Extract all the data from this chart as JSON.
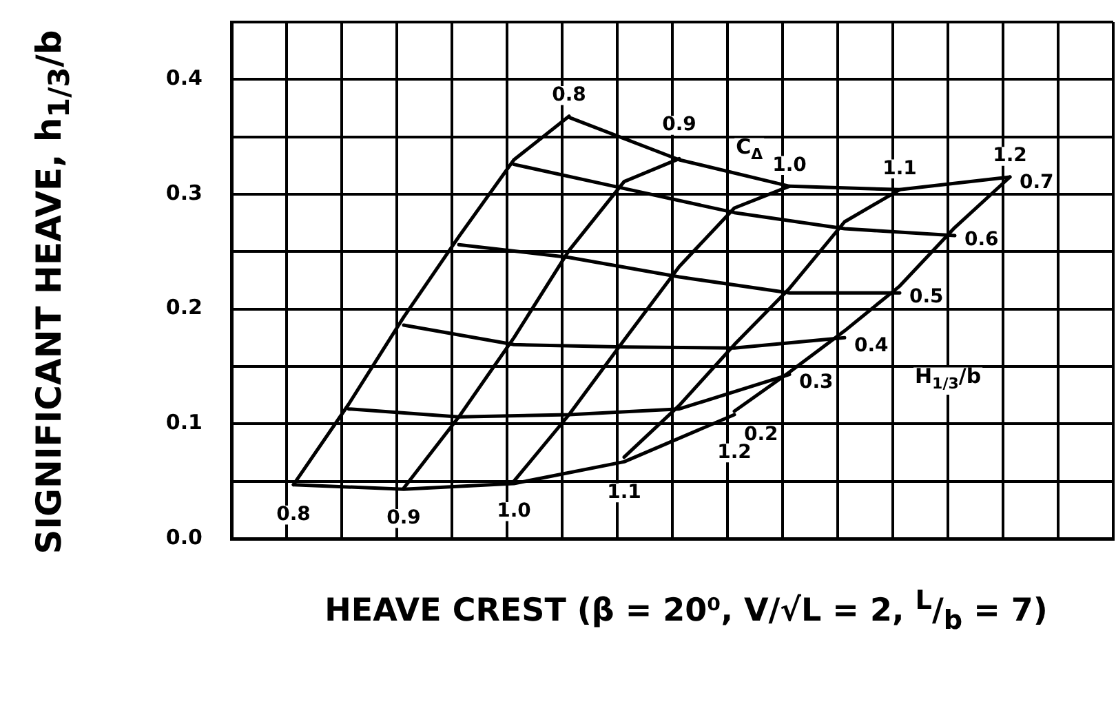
{
  "chart_data": {
    "type": "line",
    "xlabel": "HEAVE CREST (β = 20⁰, V/√L = 2, $^{L}$/$_{b}$ = 7)",
    "ylabel": "SIGNIFICANT HEAVE, h$_{1/3}$/b",
    "annotations": [
      "C$_{Δ}$",
      "H$_{1/3}$/b"
    ],
    "categories": [
      null,
      null,
      null,
      null,
      null,
      null,
      null,
      null,
      null,
      null,
      null,
      null,
      null,
      null,
      null,
      null,
      null,
      null,
      null,
      null,
      null,
      null,
      null,
      null,
      null,
      null,
      null,
      null,
      null,
      null,
      null,
      null,
      null,
      null,
      null,
      null,
      null,
      null,
      null,
      null,
      null,
      null,
      null,
      null,
      null,
      null,
      null,
      null,
      null,
      null,
      null,
      null,
      null,
      null,
      null,
      null,
      null,
      null,
      null,
      null,
      null,
      null,
      null,
      null
    ],
    "series": [
      {
        "name": "0.8",
        "color": "#000000",
        "values": [
          null,
          null,
          null,
          null,
          0.047,
          null,
          null,
          null,
          0.117,
          null,
          null,
          null,
          0.193,
          null,
          null,
          null,
          0.263,
          null,
          null,
          null,
          0.33,
          null,
          null,
          null,
          0.368,
          null,
          null,
          null,
          null,
          null,
          null,
          null,
          null,
          null,
          null,
          null,
          null,
          null,
          null,
          null,
          null,
          null,
          null,
          null,
          null,
          null,
          null,
          null,
          null,
          null,
          null,
          null,
          null,
          null,
          null,
          null,
          null,
          null,
          null,
          null,
          null,
          null,
          null,
          null
        ]
      },
      {
        "name": "0.9",
        "color": "#000000",
        "values": [
          null,
          null,
          null,
          null,
          null,
          null,
          null,
          null,
          null,
          null,
          null,
          null,
          0.044,
          null,
          null,
          null,
          0.106,
          null,
          null,
          null,
          0.175,
          null,
          null,
          null,
          0.251,
          null,
          null,
          null,
          0.311,
          null,
          null,
          null,
          0.331,
          null,
          null,
          null,
          null,
          null,
          null,
          null,
          null,
          null,
          null,
          null,
          null,
          null,
          null,
          null,
          null,
          null,
          null,
          null,
          null,
          null,
          null,
          null,
          null,
          null,
          null,
          null,
          null,
          null,
          null,
          null
        ]
      },
      {
        "name": "1.0",
        "color": "#000000",
        "values": [
          null,
          null,
          null,
          null,
          null,
          null,
          null,
          null,
          null,
          null,
          null,
          null,
          null,
          null,
          null,
          null,
          null,
          null,
          null,
          null,
          0.05,
          null,
          null,
          null,
          0.108,
          null,
          null,
          null,
          0.173,
          null,
          null,
          null,
          0.237,
          null,
          null,
          null,
          0.288,
          null,
          null,
          null,
          0.307,
          null,
          null,
          null,
          null,
          null,
          null,
          null,
          null,
          null,
          null,
          null,
          null,
          null,
          null,
          null,
          null,
          null,
          null,
          null,
          null,
          null,
          null,
          null
        ]
      },
      {
        "name": "1.1",
        "color": "#000000",
        "values": [
          null,
          null,
          null,
          null,
          null,
          null,
          null,
          null,
          null,
          null,
          null,
          null,
          null,
          null,
          null,
          null,
          null,
          null,
          null,
          null,
          null,
          null,
          null,
          null,
          null,
          null,
          null,
          null,
          0.071,
          null,
          null,
          null,
          0.116,
          null,
          null,
          null,
          0.169,
          null,
          null,
          null,
          0.218,
          null,
          null,
          null,
          0.276,
          null,
          null,
          null,
          0.304,
          null,
          null,
          null,
          null,
          null,
          null,
          null,
          null,
          null,
          null,
          null,
          null,
          null,
          null,
          null
        ]
      },
      {
        "name": "1.2",
        "color": "#000000",
        "values": [
          null,
          null,
          null,
          null,
          null,
          null,
          null,
          null,
          null,
          null,
          null,
          null,
          null,
          null,
          null,
          null,
          null,
          null,
          null,
          null,
          null,
          null,
          null,
          null,
          null,
          null,
          null,
          null,
          null,
          null,
          null,
          null,
          null,
          null,
          null,
          null,
          0.111,
          null,
          null,
          null,
          0.145,
          null,
          null,
          null,
          0.181,
          null,
          null,
          null,
          0.22,
          null,
          null,
          null,
          0.271,
          null,
          null,
          null,
          0.315,
          null,
          null,
          null,
          null,
          null,
          null,
          null
        ]
      },
      {
        "name": "0.2",
        "color": "#000000",
        "values": [
          null,
          null,
          null,
          null,
          0.047,
          null,
          null,
          null,
          null,
          null,
          null,
          null,
          0.043,
          null,
          null,
          null,
          null,
          null,
          null,
          null,
          0.048,
          null,
          null,
          null,
          null,
          null,
          null,
          null,
          0.067,
          null,
          null,
          null,
          null,
          null,
          null,
          null,
          0.108,
          null,
          null,
          null,
          null,
          null,
          null,
          null,
          null,
          null,
          null,
          null,
          null,
          null,
          null,
          null,
          null,
          null,
          null,
          null,
          null,
          null,
          null,
          null,
          null,
          null,
          null,
          null
        ]
      },
      {
        "name": "0.3",
        "color": "#000000",
        "values": [
          null,
          null,
          null,
          null,
          null,
          null,
          null,
          null,
          0.113,
          null,
          null,
          null,
          null,
          null,
          null,
          null,
          0.106,
          null,
          null,
          null,
          null,
          null,
          null,
          null,
          0.108,
          null,
          null,
          null,
          null,
          null,
          null,
          null,
          0.113,
          null,
          null,
          null,
          null,
          null,
          null,
          null,
          0.143,
          null,
          null,
          null,
          null,
          null,
          null,
          null,
          null,
          null,
          null,
          null,
          null,
          null,
          null,
          null,
          null,
          null,
          null,
          null,
          null,
          null,
          null,
          null
        ]
      },
      {
        "name": "0.4",
        "color": "#000000",
        "values": [
          null,
          null,
          null,
          null,
          null,
          null,
          null,
          null,
          null,
          null,
          null,
          null,
          0.186,
          null,
          null,
          null,
          null,
          null,
          null,
          null,
          0.169,
          null,
          null,
          null,
          null,
          null,
          null,
          null,
          0.167,
          null,
          null,
          null,
          null,
          null,
          null,
          null,
          0.166,
          null,
          null,
          null,
          null,
          null,
          null,
          null,
          0.175,
          null,
          null,
          null,
          null,
          null,
          null,
          null,
          null,
          null,
          null,
          null,
          null,
          null,
          null,
          null,
          null,
          null,
          null,
          null
        ]
      },
      {
        "name": "0.5",
        "color": "#000000",
        "values": [
          null,
          null,
          null,
          null,
          null,
          null,
          null,
          null,
          null,
          null,
          null,
          null,
          null,
          null,
          null,
          null,
          0.256,
          null,
          null,
          null,
          null,
          null,
          null,
          null,
          0.245,
          null,
          null,
          null,
          null,
          null,
          null,
          null,
          0.228,
          null,
          null,
          null,
          null,
          null,
          null,
          null,
          0.214,
          null,
          null,
          null,
          null,
          null,
          null,
          null,
          0.214,
          null,
          null,
          null,
          null,
          null,
          null,
          null,
          null,
          null,
          null,
          null,
          null,
          null,
          null,
          null
        ]
      },
      {
        "name": "0.6",
        "color": "#000000",
        "values": [
          null,
          null,
          null,
          null,
          null,
          null,
          null,
          null,
          null,
          null,
          null,
          null,
          null,
          null,
          null,
          null,
          null,
          null,
          null,
          null,
          0.326,
          null,
          null,
          null,
          null,
          null,
          null,
          null,
          0.305,
          null,
          null,
          null,
          null,
          null,
          null,
          null,
          0.284,
          null,
          null,
          null,
          null,
          null,
          null,
          null,
          0.27,
          null,
          null,
          null,
          null,
          null,
          null,
          null,
          0.264,
          null,
          null,
          null,
          null,
          null,
          null,
          null,
          null,
          null,
          null,
          null
        ]
      },
      {
        "name": "0.7",
        "color": "#000000",
        "values": [
          null,
          null,
          null,
          null,
          null,
          null,
          null,
          null,
          null,
          null,
          null,
          null,
          null,
          null,
          null,
          null,
          null,
          null,
          null,
          null,
          null,
          null,
          null,
          null,
          0.367,
          null,
          null,
          null,
          null,
          null,
          null,
          null,
          0.33,
          null,
          null,
          null,
          null,
          null,
          null,
          null,
          0.307,
          null,
          null,
          null,
          null,
          null,
          null,
          null,
          0.304,
          null,
          null,
          null,
          null,
          null,
          null,
          null,
          0.315,
          null,
          null,
          null,
          null,
          null,
          null,
          null
        ]
      }
    ],
    "ylim": [
      0,
      0.45
    ],
    "yticks": [
      {
        "value": 0,
        "label": "0.0"
      },
      {
        "value": 0.05,
        "label": null
      },
      0.1,
      {
        "value": 0.15,
        "label": null
      },
      0.2,
      {
        "value": 0.25,
        "label": null
      },
      0.3,
      {
        "value": 0.35,
        "label": null
      },
      0.4,
      {
        "value": 0.45,
        "label": null
      }
    ],
    "grid": true
  }
}
